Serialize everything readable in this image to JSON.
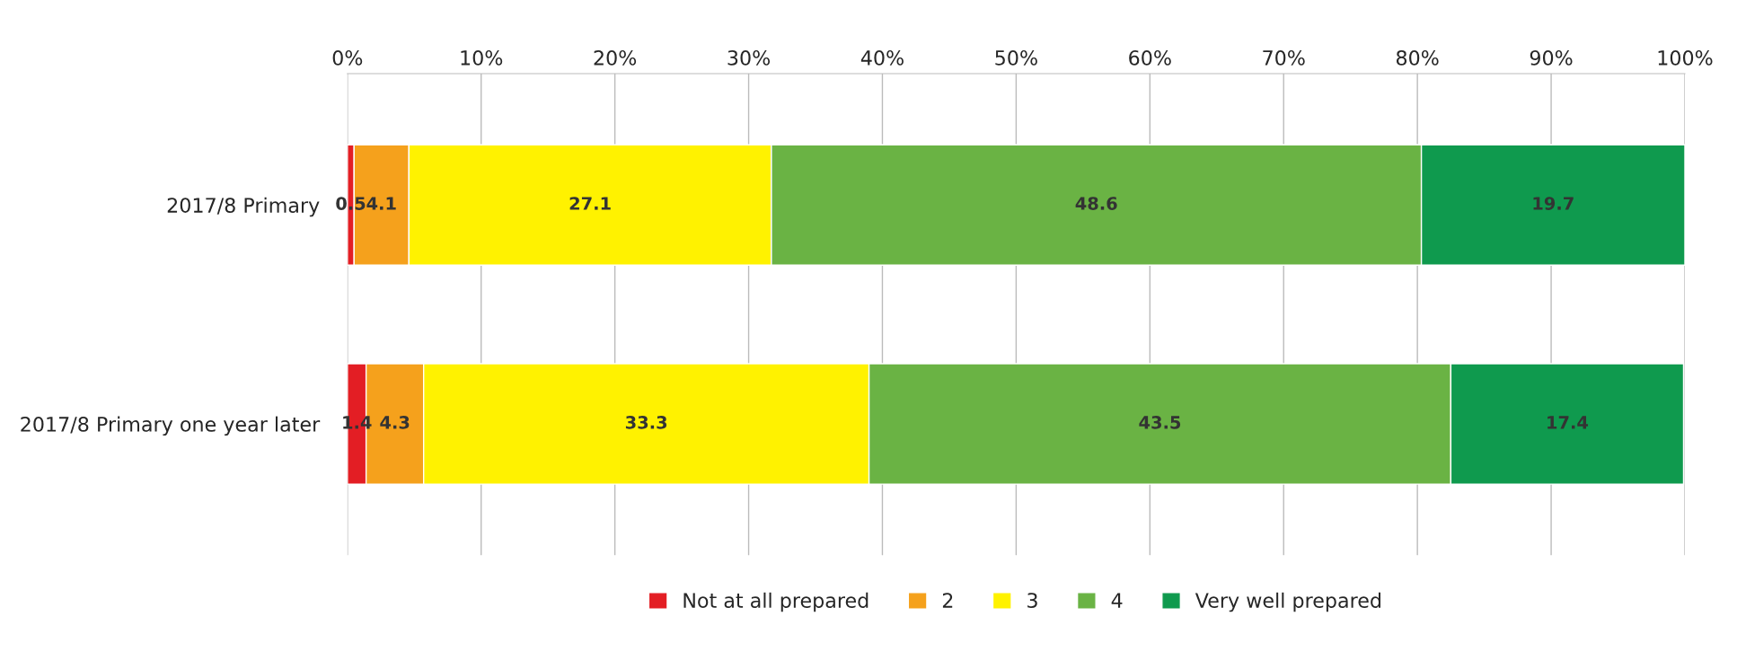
{
  "chart_data": {
    "type": "bar",
    "orientation": "horizontal",
    "stacked": true,
    "categories": [
      "2017/8 Primary",
      "2017/8 Primary one year later"
    ],
    "series": [
      {
        "name": "Not at all prepared",
        "color": "#e31e24",
        "values": [
          0.5,
          1.4
        ]
      },
      {
        "name": "2",
        "color": "#f5a11c",
        "values": [
          4.1,
          4.3
        ]
      },
      {
        "name": "3",
        "color": "#fff200",
        "values": [
          27.1,
          33.3
        ]
      },
      {
        "name": "4",
        "color": "#6ab344",
        "values": [
          48.6,
          43.5
        ]
      },
      {
        "name": "Very well prepared",
        "color": "#0f9a4e",
        "values": [
          19.7,
          17.4
        ]
      }
    ],
    "xlim": [
      0,
      100
    ],
    "xticks": [
      {
        "value": 0,
        "label": "0%"
      },
      {
        "value": 10,
        "label": "10%"
      },
      {
        "value": 20,
        "label": "20%"
      },
      {
        "value": 30,
        "label": "30%"
      },
      {
        "value": 40,
        "label": "40%"
      },
      {
        "value": 50,
        "label": "50%"
      },
      {
        "value": 60,
        "label": "60%"
      },
      {
        "value": 70,
        "label": "70%"
      },
      {
        "value": 80,
        "label": "80%"
      },
      {
        "value": 90,
        "label": "90%"
      },
      {
        "value": 100,
        "label": "100%"
      }
    ],
    "data_labels": true,
    "grid": "x",
    "legend": "bottom"
  }
}
